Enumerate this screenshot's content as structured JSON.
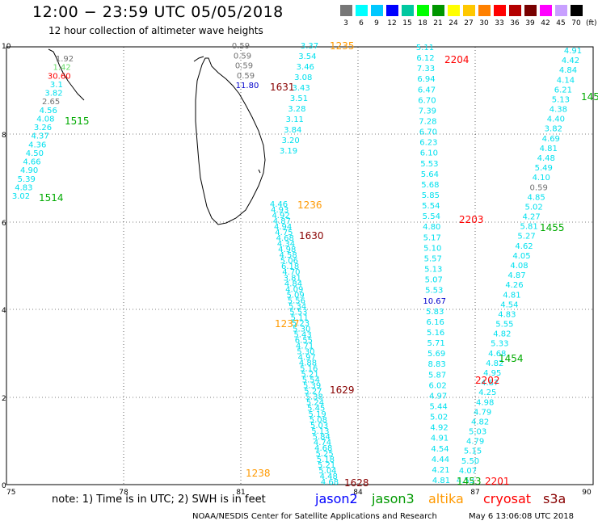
{
  "header": {
    "title": "12:00 − 23:59 UTC 05/05/2018",
    "subtitle": "12 hour collection of altimeter wave heights"
  },
  "colorbar": {
    "unit": "(ft)",
    "ticks": [
      "3",
      "6",
      "9",
      "12",
      "15",
      "18",
      "21",
      "24",
      "27",
      "30",
      "33",
      "36",
      "39",
      "42",
      "45",
      "70"
    ],
    "colors": [
      "#777777",
      "#00ffff",
      "#00c8ff",
      "#0000ff",
      "#00c8a0",
      "#00ff00",
      "#009600",
      "#ffff00",
      "#ffc800",
      "#ff8000",
      "#ff0000",
      "#b40000",
      "#780000",
      "#ff00ff",
      "#c8a0ff",
      "#000000"
    ]
  },
  "axes": {
    "lon_labels": [
      "75",
      "78",
      "81",
      "84",
      "87",
      "90"
    ],
    "lat_labels": [
      "10",
      "8",
      "6",
      "4",
      "2",
      "0"
    ]
  },
  "colors": {
    "cyan": "#00e0ee",
    "green": "#00aa00",
    "orange": "#ff9900",
    "darkred": "#880000",
    "red": "#ff0000",
    "blue": "#0000cc",
    "gray": "#707070",
    "lightgreen": "#66dd66"
  },
  "track_labels": [
    {
      "text": "1235",
      "color": "orange"
    },
    {
      "text": "1631",
      "color": "darkred"
    },
    {
      "text": "1515",
      "color": "green"
    },
    {
      "text": "1514",
      "color": "green"
    },
    {
      "text": "1236",
      "color": "orange"
    },
    {
      "text": "1630",
      "color": "darkred"
    },
    {
      "text": "1237",
      "color": "orange"
    },
    {
      "text": "1629",
      "color": "darkred"
    },
    {
      "text": "1238",
      "color": "orange"
    },
    {
      "text": "1628",
      "color": "darkred"
    },
    {
      "text": "2204",
      "color": "red"
    },
    {
      "text": "2203",
      "color": "red"
    },
    {
      "text": "2202",
      "color": "red"
    },
    {
      "text": "2201",
      "color": "red"
    },
    {
      "text": "1455",
      "color": "green"
    },
    {
      "text": "1454",
      "color": "green"
    },
    {
      "text": "1453",
      "color": "green"
    },
    {
      "text": "145",
      "color": "green"
    }
  ],
  "footer": {
    "note": "note:  1) Time is in UTC;  2) SWH is in feet",
    "satellites": [
      {
        "name": "jason2",
        "color": "#0000ff"
      },
      {
        "name": "jason3",
        "color": "#009900"
      },
      {
        "name": "altika",
        "color": "#ff9900"
      },
      {
        "name": "cryosat",
        "color": "#ff0000"
      },
      {
        "name": "s3a",
        "color": "#880000"
      }
    ],
    "credit": "NOAA/NESDIS Center for Satellite Applications and Research",
    "timestamp": "May  6 13:06:08 UTC 2018"
  },
  "tracks": {
    "t1514": [
      "1.92",
      "1.42",
      "30.60",
      "3.1",
      "3.82",
      "2.65",
      "4.56",
      "4.08",
      "3.26",
      "4.37",
      "4.36",
      "4.50",
      "4.66",
      "4.90",
      "5.39",
      "4.83",
      "3.02"
    ],
    "t1631": [
      "0.59",
      "0.59",
      "0.59",
      "0.59",
      "11.80"
    ],
    "t1235": [
      "3.37",
      "3.54",
      "3.46",
      "3.08",
      "3.43",
      "3.51",
      "3.28",
      "3.11",
      "3.84",
      "3.20",
      "3.19"
    ],
    "t1236": [
      "4.46",
      "4.93",
      "4.92",
      "4.87",
      "4.94",
      "4.75",
      "4.68",
      "4.34",
      "4.98",
      "4.58",
      "5.06",
      "6.18",
      "4.70",
      "3.81",
      "4.84",
      "4.09",
      "5.09",
      "5.56",
      "5.34",
      "5.53",
      "5.11",
      "5.23",
      "5.30",
      "5.43",
      "6.55",
      "4.71",
      "5.30",
      "4.97",
      "4.88",
      "5.16",
      "5.21",
      "5.54",
      "5.39",
      "5.27",
      "5.38",
      "5.24",
      "5.45",
      "5.19",
      "5.08",
      "5.03",
      "5.13",
      "5.84",
      "4.74",
      "4.68",
      "5.25",
      "5.18",
      "5.21",
      "5.04",
      "4.48",
      "4.68"
    ],
    "t2204": [
      "5.11",
      "6.12",
      "7.33",
      "6.94",
      "6.47",
      "6.70",
      "7.39",
      "7.28",
      "6.70",
      "6.23",
      "6.10",
      "5.53",
      "5.64",
      "5.68",
      "5.85",
      "5.54",
      "5.54",
      "4.80",
      "5.17",
      "5.10",
      "5.57",
      "5.13",
      "5.07",
      "5.53",
      "10.67",
      "5.83",
      "6.16",
      "5.16",
      "5.71",
      "5.69",
      "8.83",
      "5.87",
      "6.02",
      "4.97",
      "5.44",
      "5.02",
      "4.92",
      "4.91",
      "4.54",
      "4.44",
      "4.21",
      "4.81"
    ],
    "t1455": [
      "4.91",
      "4.42",
      "4.84",
      "4.14",
      "6.21",
      "5.13",
      "4.38",
      "4.40",
      "3.82",
      "4.69",
      "4.81",
      "4.48",
      "5.49",
      "4.10",
      "0.59",
      "4.85",
      "5.02",
      "4.27",
      "5.81",
      "5.27",
      "4.62",
      "4.05",
      "4.08",
      "4.87",
      "4.26",
      "4.81",
      "4.54",
      "4.83",
      "5.55",
      "4.82",
      "5.33",
      "4.68",
      "4.82",
      "4.95",
      "4.87",
      "4.25",
      "4.98",
      "4.79",
      "4.82",
      "5.03",
      "4.79",
      "5.15",
      "5.50",
      "4.07",
      "4.53"
    ]
  }
}
